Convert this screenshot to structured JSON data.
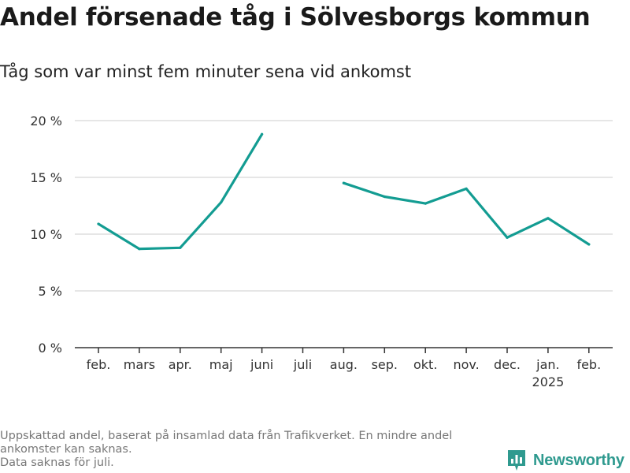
{
  "title": "Andel försenade tåg i Sölvesborgs kommun",
  "subtitle": "Tåg som var minst fem minuter sena vid ankomst",
  "footnote": {
    "line1": "Uppskattad andel, baserat på insamlad data från Trafikverket. En mindre andel",
    "line2": "ankomster kan saknas.",
    "line3": "Data saknas för juli."
  },
  "brand": {
    "name": "Newsworthy"
  },
  "colors": {
    "line": "#139c92",
    "grid": "#dddddd",
    "axis": "#333333",
    "brand": "#2f9a8f"
  },
  "chart_data": {
    "type": "line",
    "title": "Andel försenade tåg i Sölvesborgs kommun",
    "subtitle": "Tåg som var minst fem minuter sena vid ankomst",
    "xlabel": "",
    "ylabel": "",
    "ylim": [
      0,
      20
    ],
    "yticks": [
      0,
      5,
      10,
      15,
      20
    ],
    "ytick_labels": [
      "0 %",
      "5 %",
      "10 %",
      "15 %",
      "20 %"
    ],
    "grid": true,
    "categories": [
      "feb.",
      "mars",
      "apr.",
      "maj",
      "juni",
      "juli",
      "aug.",
      "sep.",
      "okt.",
      "nov.",
      "dec.",
      "jan.",
      "feb."
    ],
    "category_sublabels": [
      "",
      "",
      "",
      "",
      "",
      "",
      "",
      "",
      "",
      "",
      "",
      "2025",
      ""
    ],
    "series": [
      {
        "name": "Andel försenade tåg",
        "values": [
          10.9,
          8.7,
          8.8,
          12.8,
          18.8,
          null,
          14.5,
          13.3,
          12.7,
          14.0,
          9.7,
          11.4,
          9.1
        ]
      }
    ]
  }
}
